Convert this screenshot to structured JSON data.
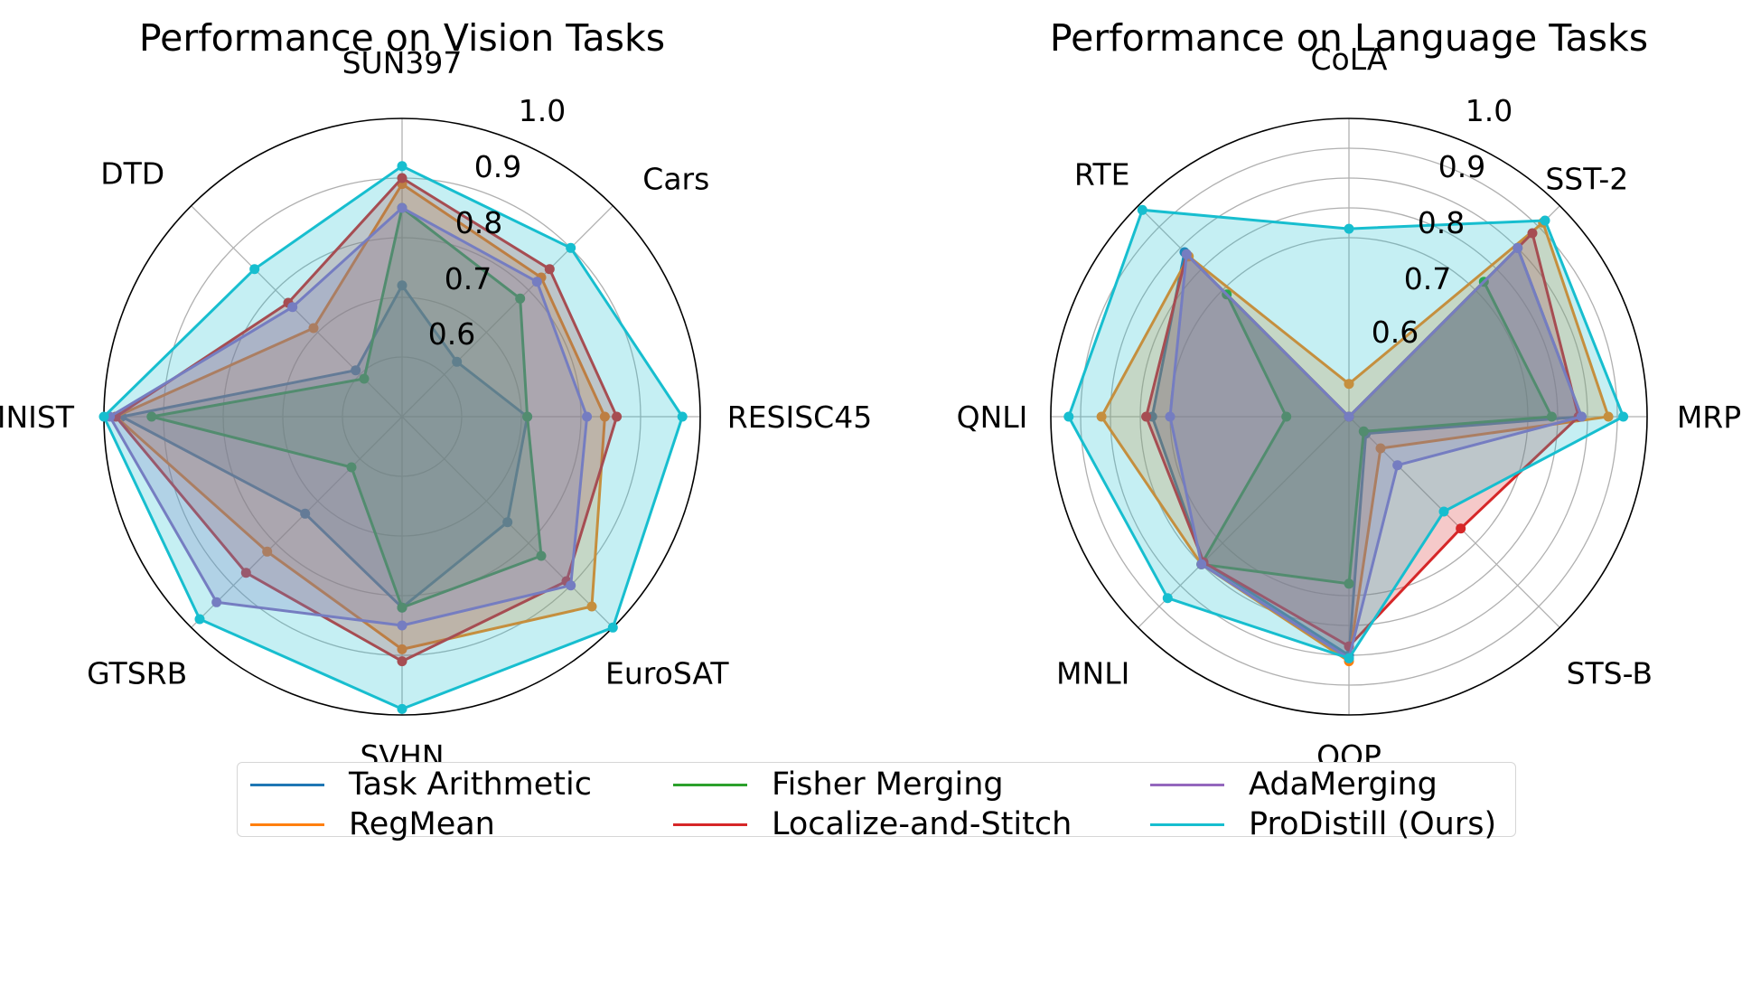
{
  "legend": {
    "items": [
      {
        "label": "Task Arithmetic",
        "color": "#1f77b4"
      },
      {
        "label": "RegMean",
        "color": "#ff7f0e"
      },
      {
        "label": "Fisher Merging",
        "color": "#2ca02c"
      },
      {
        "label": "Localize-and-Stitch",
        "color": "#d62728"
      },
      {
        "label": "AdaMerging",
        "color": "#9467bd"
      },
      {
        "label": "ProDistill (Ours)",
        "color": "#17becf"
      }
    ]
  },
  "chart_data": [
    {
      "type": "radar",
      "title": "Performance on Vision Tasks",
      "categories": [
        "SUN397",
        "Cars",
        "RESISC45",
        "EuroSAT",
        "SVHN",
        "GTSRB",
        "MNIST",
        "DTD"
      ],
      "rlim": [
        0.5,
        1.0
      ],
      "rticks": [
        "0.6",
        "0.7",
        "0.8",
        "0.9",
        "1.0"
      ],
      "series": [
        {
          "name": "Task Arithmetic",
          "values": [
            0.72,
            0.63,
            0.71,
            0.75,
            0.82,
            0.73,
            0.97,
            0.61
          ]
        },
        {
          "name": "RegMean",
          "values": [
            0.89,
            0.83,
            0.84,
            0.95,
            0.89,
            0.82,
            0.98,
            0.71
          ]
        },
        {
          "name": "Fisher Merging",
          "values": [
            0.85,
            0.78,
            0.71,
            0.83,
            0.82,
            0.62,
            0.92,
            0.59
          ]
        },
        {
          "name": "Localize-and-Stitch",
          "values": [
            0.9,
            0.85,
            0.86,
            0.89,
            0.91,
            0.87,
            0.98,
            0.77
          ]
        },
        {
          "name": "AdaMerging",
          "values": [
            0.85,
            0.82,
            0.81,
            0.9,
            0.85,
            0.94,
            0.99,
            0.76
          ]
        },
        {
          "name": "ProDistill (Ours)",
          "values": [
            0.92,
            0.9,
            0.97,
            1.0,
            0.99,
            0.98,
            1.0,
            0.85
          ]
        }
      ]
    },
    {
      "type": "radar",
      "title": "Performance on Language Tasks",
      "categories": [
        "CoLA",
        "SST-2",
        "MRPC",
        "STS-B",
        "QQP",
        "MNLI",
        "QNLI",
        "RTE"
      ],
      "rlim": [
        0.0,
        1.0
      ],
      "rticks": [
        "0.6",
        "0.7",
        "0.8",
        "0.9",
        "1.0"
      ],
      "series": [
        {
          "name": "Task Arithmetic",
          "values": [
            0.0,
            0.8,
            0.78,
            0.08,
            0.8,
            0.69,
            0.66,
            0.78
          ]
        },
        {
          "name": "RegMean",
          "values": [
            0.11,
            0.92,
            0.87,
            0.15,
            0.82,
            0.7,
            0.83,
            0.76
          ]
        },
        {
          "name": "Fisher Merging",
          "values": [
            0.0,
            0.64,
            0.68,
            0.07,
            0.56,
            0.7,
            0.21,
            0.58
          ]
        },
        {
          "name": "Localize-and-Stitch",
          "values": [
            0.0,
            0.87,
            0.77,
            0.53,
            0.77,
            0.69,
            0.68,
            0.77
          ]
        },
        {
          "name": "AdaMerging",
          "values": [
            0.0,
            0.8,
            0.78,
            0.23,
            0.81,
            0.7,
            0.6,
            0.77
          ]
        },
        {
          "name": "ProDistill (Ours)",
          "values": [
            0.63,
            0.93,
            0.92,
            0.45,
            0.81,
            0.86,
            0.94,
            0.98
          ]
        }
      ]
    }
  ]
}
